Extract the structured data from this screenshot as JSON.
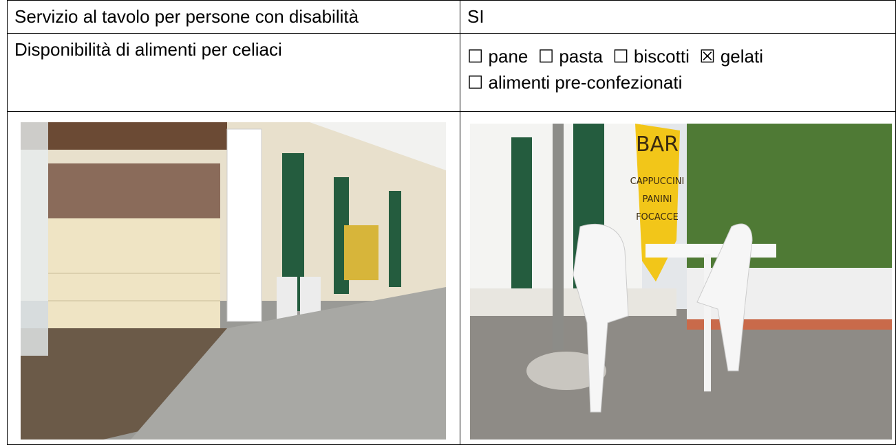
{
  "table": {
    "rows": [
      [
        "Servizio al tavolo per persone con disabilità",
        "SI"
      ],
      [
        "Disponibilità di alimenti per celiaci",
        "☐ pane  ☐ pasta  ☐ biscotti  ☒ gelati",
        "☐ alimenti pre-confezionati"
      ]
    ]
  },
  "photos": {
    "sign": [
      "BAR",
      "CAPPUCCINI",
      "PANINI",
      "FOCACCE"
    ]
  }
}
